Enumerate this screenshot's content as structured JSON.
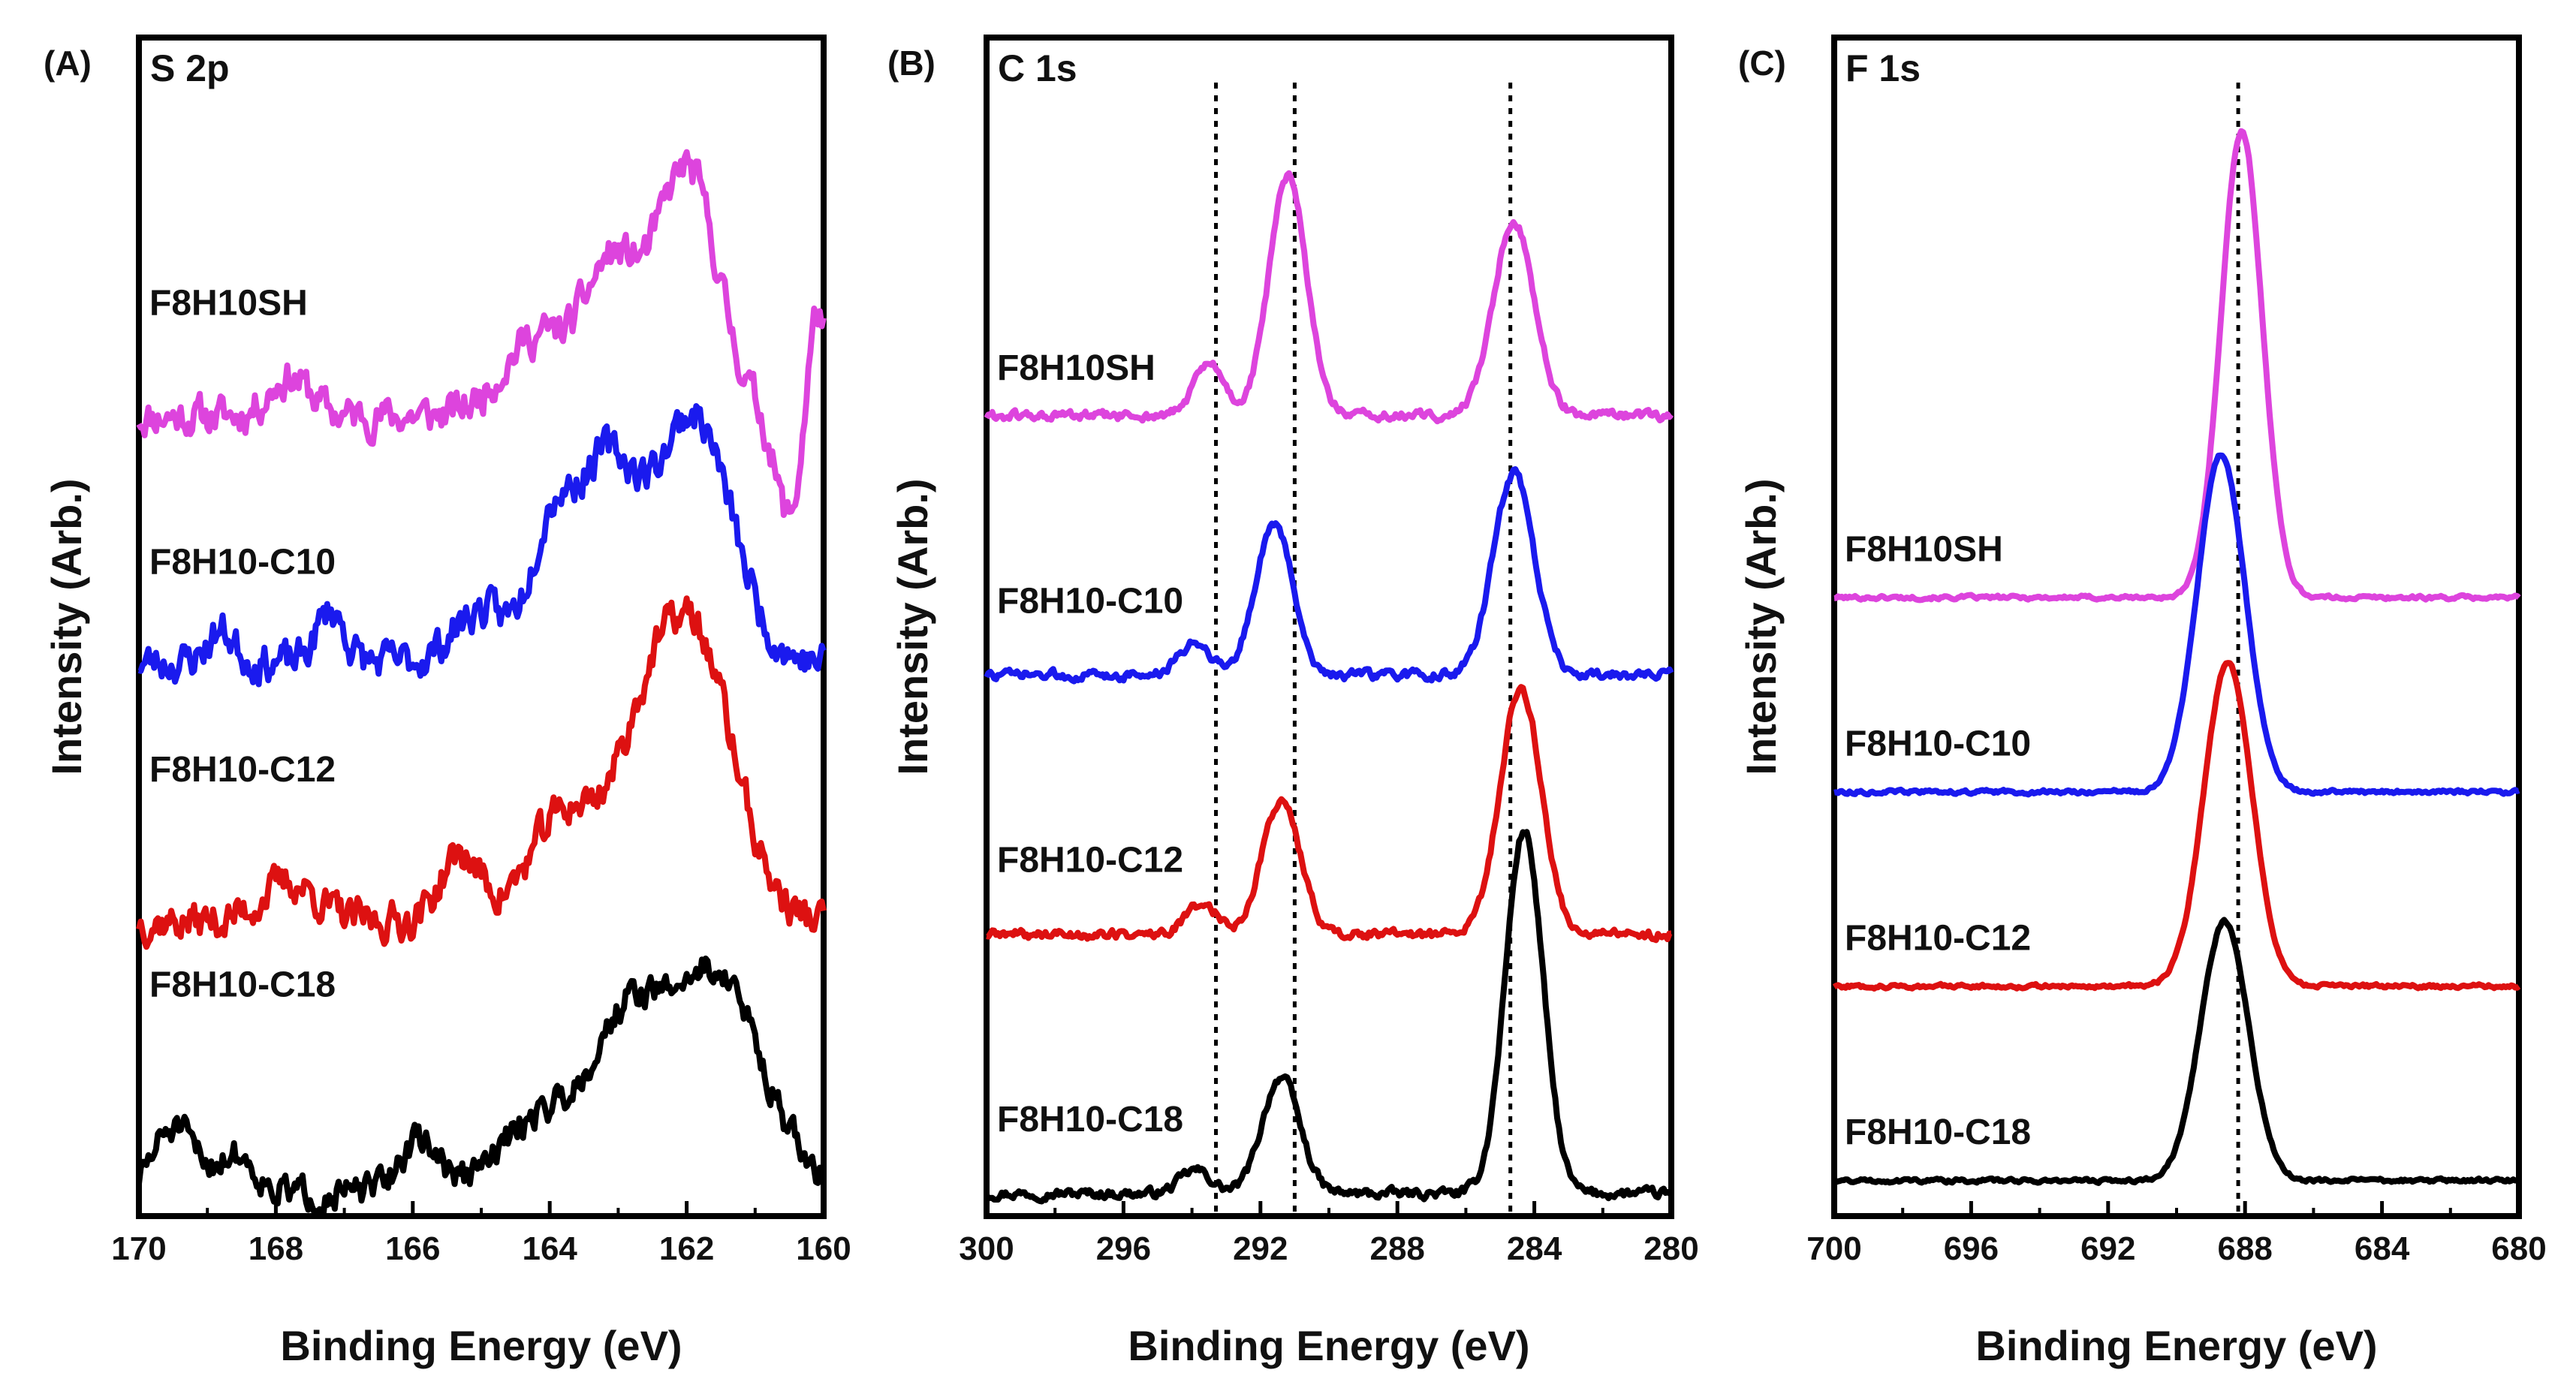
{
  "chart_data": [
    {
      "type": "line",
      "panel_label": "(A)",
      "title": "S 2p",
      "xlabel": "Binding Energy (eV)",
      "ylabel": "Intensity (Arb.)",
      "xlim": [
        170,
        160
      ],
      "ylim": [
        0,
        4.2
      ],
      "x_ticks": [
        170,
        168,
        166,
        164,
        162,
        160
      ],
      "tick_labels": [
        "170",
        "168",
        "166",
        "164",
        "162",
        "160"
      ],
      "series": [
        {
          "name": "F8H10SH",
          "label": "F8H10SH",
          "color": "#dd44dd",
          "baseline": 3.0,
          "label_level": 3.35,
          "noise_seed": 11,
          "noise_amp": 0.12,
          "peaks": [
            [
              162.0,
              0.95,
              0.45
            ],
            [
              163.1,
              0.55,
              0.4
            ],
            [
              164.2,
              0.3,
              0.5
            ],
            [
              160.1,
              0.45,
              0.15
            ],
            [
              167.8,
              0.15,
              0.3
            ]
          ],
          "dip": [
            160.5,
            -0.4,
            0.2
          ]
        },
        {
          "name": "F8H10-C10",
          "label": "F8H10-C10",
          "color": "#1a1aee",
          "baseline": 2.05,
          "label_level": 2.35,
          "noise_seed": 23,
          "noise_amp": 0.12,
          "peaks": [
            [
              161.9,
              0.95,
              0.55
            ],
            [
              163.2,
              0.75,
              0.45
            ],
            [
              164.0,
              0.45,
              0.3
            ],
            [
              165.0,
              0.2,
              0.4
            ],
            [
              167.2,
              0.2,
              0.2
            ],
            [
              168.8,
              0.12,
              0.2
            ]
          ],
          "dip": [
            160.5,
            0.0,
            0.2
          ]
        },
        {
          "name": "F8H10-C12",
          "label": "F8H10-C12",
          "color": "#dd1111",
          "baseline": 1.05,
          "label_level": 1.55,
          "noise_seed": 37,
          "noise_amp": 0.12,
          "peaks": [
            [
              161.8,
              0.95,
              0.55
            ],
            [
              162.6,
              0.6,
              0.5
            ],
            [
              163.8,
              0.4,
              0.5
            ],
            [
              165.3,
              0.25,
              0.3
            ],
            [
              167.8,
              0.15,
              0.4
            ]
          ],
          "dip": [
            160.5,
            0.0,
            0.2
          ]
        },
        {
          "name": "F8H10-C18",
          "label": "F8H10-C18",
          "color": "#000000",
          "baseline": 0.0,
          "label_level": 0.72,
          "noise_seed": 51,
          "noise_amp": 0.1,
          "peaks": [
            [
              161.6,
              0.85,
              0.7
            ],
            [
              162.9,
              0.55,
              0.5
            ],
            [
              164.1,
              0.3,
              0.6
            ],
            [
              165.9,
              0.2,
              0.3
            ],
            [
              169.5,
              0.25,
              0.3
            ],
            [
              168.6,
              0.15,
              0.3
            ]
          ],
          "dip": [
            160.5,
            0.0,
            0.2
          ]
        }
      ],
      "reference_lines": []
    },
    {
      "type": "line",
      "panel_label": "(B)",
      "title": "C 1s",
      "xlabel": "Binding Energy (eV)",
      "ylabel": "Intensity (Arb.)",
      "xlim": [
        300,
        280
      ],
      "ylim": [
        0,
        4.2
      ],
      "x_ticks": [
        300,
        296,
        292,
        288,
        284,
        280
      ],
      "tick_labels": [
        "300",
        "296",
        "292",
        "288",
        "284",
        "280"
      ],
      "series": [
        {
          "name": "F8H10SH",
          "label": "F8H10SH",
          "color": "#dd44dd",
          "baseline": 3.0,
          "label_level": 3.1,
          "noise_seed": 61,
          "noise_amp": 0.03,
          "peaks": [
            [
              293.5,
              0.2,
              0.45
            ],
            [
              291.2,
              0.92,
              0.55
            ],
            [
              284.6,
              0.75,
              0.6
            ]
          ]
        },
        {
          "name": "F8H10-C10",
          "label": "F8H10-C10",
          "color": "#1a1aee",
          "baseline": 2.0,
          "label_level": 2.2,
          "noise_seed": 73,
          "noise_amp": 0.03,
          "peaks": [
            [
              293.9,
              0.13,
              0.45
            ],
            [
              291.6,
              0.58,
              0.55
            ],
            [
              284.6,
              0.78,
              0.6
            ]
          ]
        },
        {
          "name": "F8H10-C12",
          "label": "F8H10-C12",
          "color": "#dd1111",
          "baseline": 1.0,
          "label_level": 1.2,
          "noise_seed": 89,
          "noise_amp": 0.03,
          "peaks": [
            [
              293.7,
              0.12,
              0.45
            ],
            [
              291.4,
              0.52,
              0.55
            ],
            [
              284.4,
              0.95,
              0.6
            ]
          ]
        },
        {
          "name": "F8H10-C18",
          "label": "F8H10-C18",
          "color": "#000000",
          "baseline": 0.0,
          "label_level": 0.2,
          "noise_seed": 97,
          "noise_amp": 0.03,
          "peaks": [
            [
              293.9,
              0.09,
              0.45
            ],
            [
              291.4,
              0.45,
              0.55
            ],
            [
              284.3,
              1.4,
              0.55
            ]
          ]
        }
      ],
      "reference_lines": [
        293.3,
        291.0,
        284.7
      ]
    },
    {
      "type": "line",
      "panel_label": "(C)",
      "title": "F 1s",
      "xlabel": "Binding Energy (eV)",
      "ylabel": "Intensity (Arb.)",
      "xlim": [
        700,
        680
      ],
      "ylim": [
        0,
        4.2
      ],
      "x_ticks": [
        700,
        696,
        692,
        688,
        684,
        680
      ],
      "tick_labels": [
        "700",
        "696",
        "692",
        "688",
        "684",
        "680"
      ],
      "series": [
        {
          "name": "F8H10SH",
          "label": "F8H10SH",
          "color": "#dd44dd",
          "baseline": 2.3,
          "label_level": 2.4,
          "noise_seed": 101,
          "noise_amp": 0.012,
          "peaks": [
            [
              688.1,
              1.8,
              0.6
            ]
          ]
        },
        {
          "name": "F8H10-C10",
          "label": "F8H10-C10",
          "color": "#1a1aee",
          "baseline": 1.55,
          "label_level": 1.65,
          "noise_seed": 113,
          "noise_amp": 0.012,
          "peaks": [
            [
              688.7,
              1.3,
              0.7
            ]
          ]
        },
        {
          "name": "F8H10-C12",
          "label": "F8H10-C12",
          "color": "#dd1111",
          "baseline": 0.8,
          "label_level": 0.9,
          "noise_seed": 127,
          "noise_amp": 0.012,
          "peaks": [
            [
              688.5,
              1.25,
              0.7
            ]
          ]
        },
        {
          "name": "F8H10-C18",
          "label": "F8H10-C18",
          "color": "#000000",
          "baseline": 0.05,
          "label_level": 0.15,
          "noise_seed": 131,
          "noise_amp": 0.012,
          "peaks": [
            [
              688.6,
              1.0,
              0.7
            ]
          ]
        }
      ],
      "reference_lines": [
        688.2
      ]
    }
  ]
}
